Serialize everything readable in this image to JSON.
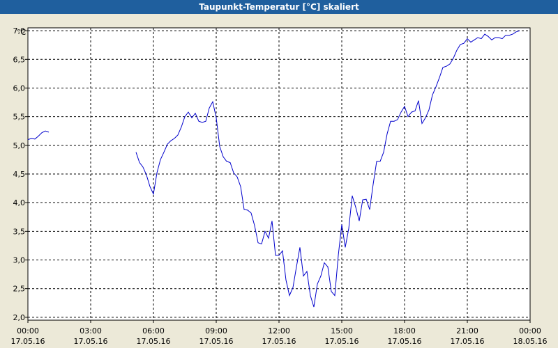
{
  "window": {
    "title": "Taupunkt-Temperatur [°C] skaliert"
  },
  "chart_data": {
    "type": "line",
    "title": "Taupunkt-Temperatur [°C] skaliert",
    "y_unit": "°C",
    "ylim": [
      1.95,
      7.05
    ],
    "yticks": [
      "7,0",
      "6,5",
      "6,0",
      "5,5",
      "5,0",
      "4,5",
      "4,0",
      "3,5",
      "3,0",
      "2,5",
      "2,0"
    ],
    "xlim": [
      "17.05.16 00:00",
      "18.05.16 00:00"
    ],
    "xticks": [
      {
        "time": "00:00",
        "date": "17.05.16"
      },
      {
        "time": "03:00",
        "date": "17.05.16"
      },
      {
        "time": "06:00",
        "date": "17.05.16"
      },
      {
        "time": "09:00",
        "date": "17.05.16"
      },
      {
        "time": "12:00",
        "date": "17.05.16"
      },
      {
        "time": "15:00",
        "date": "17.05.16"
      },
      {
        "time": "18:00",
        "date": "17.05.16"
      },
      {
        "time": "21:00",
        "date": "17.05.16"
      },
      {
        "time": "00:00",
        "date": "18.05.16"
      }
    ],
    "grid": true,
    "line_color": "#0000cc",
    "series": [
      {
        "segments": [
          [
            [
              "00:00",
              5.1
            ],
            [
              "00:10",
              5.12
            ],
            [
              "00:20",
              5.11
            ],
            [
              "00:30",
              5.16
            ],
            [
              "00:40",
              5.22
            ],
            [
              "00:50",
              5.25
            ],
            [
              "01:00",
              5.23
            ]
          ],
          [
            [
              "05:10",
              4.88
            ],
            [
              "05:20",
              4.7
            ],
            [
              "05:30",
              4.62
            ],
            [
              "05:40",
              4.48
            ],
            [
              "05:50",
              4.28
            ],
            [
              "06:00",
              4.15
            ],
            [
              "06:10",
              4.52
            ],
            [
              "06:20",
              4.75
            ],
            [
              "06:30",
              4.88
            ],
            [
              "06:40",
              5.02
            ],
            [
              "06:50",
              5.08
            ],
            [
              "07:00",
              5.12
            ],
            [
              "07:10",
              5.18
            ],
            [
              "07:20",
              5.32
            ],
            [
              "07:30",
              5.5
            ],
            [
              "07:40",
              5.58
            ],
            [
              "07:50",
              5.48
            ],
            [
              "08:00",
              5.56
            ],
            [
              "08:10",
              5.42
            ],
            [
              "08:20",
              5.4
            ],
            [
              "08:30",
              5.42
            ],
            [
              "08:40",
              5.65
            ],
            [
              "08:50",
              5.76
            ],
            [
              "09:00",
              5.48
            ],
            [
              "09:10",
              4.98
            ],
            [
              "09:20",
              4.8
            ],
            [
              "09:30",
              4.72
            ],
            [
              "09:40",
              4.7
            ],
            [
              "09:50",
              4.52
            ],
            [
              "10:00",
              4.45
            ],
            [
              "10:10",
              4.28
            ],
            [
              "10:20",
              3.88
            ],
            [
              "10:30",
              3.87
            ],
            [
              "10:40",
              3.82
            ],
            [
              "10:50",
              3.6
            ],
            [
              "11:00",
              3.3
            ],
            [
              "11:10",
              3.28
            ],
            [
              "11:20",
              3.5
            ],
            [
              "11:30",
              3.38
            ],
            [
              "11:40",
              3.68
            ],
            [
              "11:50",
              3.08
            ],
            [
              "12:00",
              3.08
            ],
            [
              "12:10",
              3.16
            ],
            [
              "12:20",
              2.65
            ],
            [
              "12:30",
              2.38
            ],
            [
              "12:40",
              2.52
            ],
            [
              "12:50",
              2.88
            ],
            [
              "13:00",
              3.22
            ],
            [
              "13:10",
              2.72
            ],
            [
              "13:20",
              2.8
            ],
            [
              "13:30",
              2.38
            ],
            [
              "13:40",
              2.18
            ],
            [
              "13:50",
              2.58
            ],
            [
              "14:00",
              2.72
            ],
            [
              "14:10",
              2.95
            ],
            [
              "14:20",
              2.88
            ],
            [
              "14:30",
              2.45
            ],
            [
              "14:40",
              2.38
            ],
            [
              "14:50",
              3.08
            ],
            [
              "15:00",
              3.62
            ],
            [
              "15:10",
              3.22
            ],
            [
              "15:20",
              3.55
            ],
            [
              "15:30",
              4.12
            ],
            [
              "15:40",
              3.92
            ],
            [
              "15:50",
              3.68
            ],
            [
              "16:00",
              4.05
            ],
            [
              "16:10",
              4.06
            ],
            [
              "16:20",
              3.88
            ],
            [
              "16:30",
              4.32
            ],
            [
              "16:40",
              4.72
            ],
            [
              "16:50",
              4.72
            ],
            [
              "17:00",
              4.88
            ],
            [
              "17:10",
              5.2
            ],
            [
              "17:20",
              5.42
            ],
            [
              "17:30",
              5.42
            ],
            [
              "17:40",
              5.45
            ],
            [
              "17:50",
              5.58
            ],
            [
              "18:00",
              5.68
            ],
            [
              "18:10",
              5.5
            ],
            [
              "18:20",
              5.58
            ],
            [
              "18:30",
              5.6
            ],
            [
              "18:40",
              5.78
            ],
            [
              "18:50",
              5.38
            ],
            [
              "19:00",
              5.48
            ],
            [
              "19:10",
              5.62
            ],
            [
              "19:20",
              5.88
            ],
            [
              "19:30",
              6.02
            ],
            [
              "19:40",
              6.18
            ],
            [
              "19:50",
              6.36
            ],
            [
              "20:00",
              6.38
            ],
            [
              "20:10",
              6.42
            ],
            [
              "20:20",
              6.52
            ],
            [
              "20:30",
              6.66
            ],
            [
              "20:40",
              6.76
            ],
            [
              "20:50",
              6.78
            ],
            [
              "21:00",
              6.86
            ],
            [
              "21:10",
              6.8
            ],
            [
              "21:20",
              6.84
            ],
            [
              "21:30",
              6.88
            ],
            [
              "21:40",
              6.86
            ],
            [
              "21:50",
              6.94
            ],
            [
              "22:00",
              6.9
            ],
            [
              "22:10",
              6.84
            ],
            [
              "22:20",
              6.88
            ],
            [
              "22:30",
              6.88
            ],
            [
              "22:40",
              6.86
            ],
            [
              "22:50",
              6.92
            ],
            [
              "23:00",
              6.92
            ],
            [
              "23:10",
              6.94
            ],
            [
              "23:20",
              6.98
            ],
            [
              "23:30",
              7.0
            ]
          ]
        ]
      }
    ]
  }
}
